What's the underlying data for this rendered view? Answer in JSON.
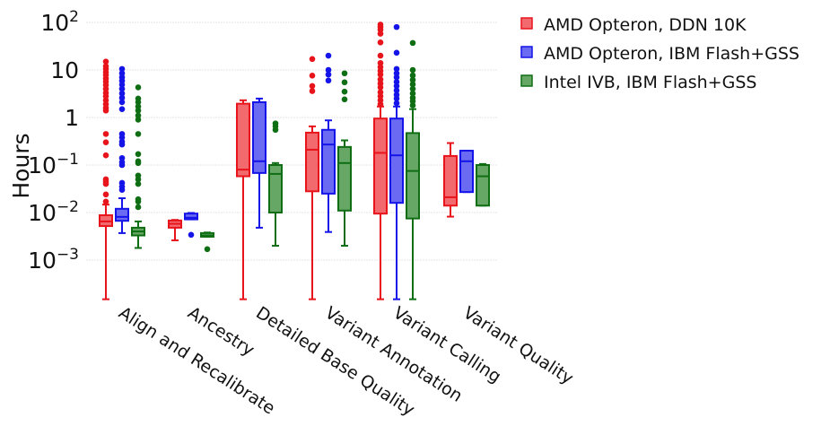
{
  "chart_data": {
    "type": "box",
    "title": "",
    "xlabel": "",
    "ylabel": "Hours",
    "yscale": "log",
    "ylim": [
      0.00015,
      110
    ],
    "grid": true,
    "legend_position": "top-right",
    "yticks": [
      {
        "value": 100,
        "base": "10",
        "exp": "2"
      },
      {
        "value": 10,
        "base": "10",
        "exp": ""
      },
      {
        "value": 1,
        "base": "1",
        "exp": ""
      },
      {
        "value": 0.1,
        "base": "10",
        "exp": "−1"
      },
      {
        "value": 0.01,
        "base": "10",
        "exp": "−2"
      },
      {
        "value": 0.001,
        "base": "10",
        "exp": "−3"
      }
    ],
    "categories": [
      "Align and Recalibrate",
      "Ancestry",
      "Detailed Base Quality",
      "Variant Annotation",
      "Variant Calling",
      "Variant Quality"
    ],
    "series": [
      {
        "name": "AMD Opteron, DDN 10K",
        "color": "#e8141b",
        "fill": "#f26a6e",
        "boxes": [
          {
            "low": 0.00015,
            "q1": 0.0052,
            "median": 0.0065,
            "q3": 0.0088,
            "high": 0.0147,
            "outliers": [
              0.017,
              0.024,
              0.04,
              0.045,
              0.05,
              0.16,
              0.3,
              0.45,
              1.4,
              1.6,
              1.9,
              2.3,
              2.8,
              3.3,
              4,
              4.8,
              5.7,
              6.6,
              7.8,
              9,
              10.5,
              12,
              15
            ]
          },
          {
            "low": 0.0026,
            "q1": 0.0048,
            "median": 0.0058,
            "q3": 0.0068,
            "high": 0.007,
            "outliers": []
          },
          {
            "low": 0.00015,
            "q1": 0.058,
            "median": 0.08,
            "q3": 1.95,
            "high": 2.3,
            "outliers": []
          },
          {
            "low": 0.00015,
            "q1": 0.028,
            "median": 0.21,
            "q3": 0.48,
            "high": 0.65,
            "outliers": [
              3.6,
              4.6,
              7.6,
              17
            ]
          },
          {
            "low": 0.00015,
            "q1": 0.0095,
            "median": 0.18,
            "q3": 0.95,
            "high": 1.7,
            "outliers": [
              1.9,
              2.3,
              2.8,
              3.4,
              4.3,
              5.2,
              6.3,
              8,
              9.6,
              11.5,
              14,
              20,
              38,
              58,
              70,
              80,
              90
            ]
          },
          {
            "low": 0.0082,
            "q1": 0.014,
            "median": 0.021,
            "q3": 0.155,
            "high": 0.29,
            "outliers": []
          }
        ]
      },
      {
        "name": "AMD Opteron, IBM Flash+GSS",
        "color": "#1414e8",
        "fill": "#6a6af2",
        "boxes": [
          {
            "low": 0.0037,
            "q1": 0.0067,
            "median": 0.0081,
            "q3": 0.012,
            "high": 0.02,
            "outliers": [
              0.03,
              0.035,
              0.042,
              0.1,
              0.115,
              0.14,
              0.27,
              0.31,
              0.38,
              0.45,
              1.5,
              2.1,
              2.6,
              3.2,
              4,
              4.9,
              5.9,
              7,
              8.5,
              10.5
            ]
          },
          {
            "low": 0.0072,
            "q1": 0.0072,
            "median": 0.0078,
            "q3": 0.0095,
            "high": 0.0098,
            "outliers": [
              0.0034
            ]
          },
          {
            "low": 0.0048,
            "q1": 0.068,
            "median": 0.12,
            "q3": 2.1,
            "high": 2.5,
            "outliers": []
          },
          {
            "low": 0.0039,
            "q1": 0.025,
            "median": 0.27,
            "q3": 0.55,
            "high": 0.87,
            "outliers": [
              6,
              8,
              10,
              20
            ]
          },
          {
            "low": 0.00015,
            "q1": 0.016,
            "median": 0.16,
            "q3": 0.95,
            "high": 1.7,
            "outliers": [
              2,
              2.5,
              3,
              3.7,
              4.6,
              5.6,
              7,
              8.5,
              10.5,
              23,
              80
            ]
          },
          {
            "low": 0.027,
            "q1": 0.027,
            "median": 0.12,
            "q3": 0.2,
            "high": 0.2,
            "outliers": []
          }
        ]
      },
      {
        "name": "Intel IVB, IBM Flash+GSS",
        "color": "#0f6e14",
        "fill": "#66a766",
        "boxes": [
          {
            "low": 0.0018,
            "q1": 0.0033,
            "median": 0.004,
            "q3": 0.0048,
            "high": 0.0065,
            "outliers": [
              0.013,
              0.017,
              0.019,
              0.04,
              0.05,
              0.06,
              0.11,
              0.12,
              0.17,
              0.45,
              0.9,
              1.1,
              1.4,
              1.7,
              2.1,
              2.5,
              4.3
            ]
          },
          {
            "low": 0.0031,
            "q1": 0.0031,
            "median": 0.0033,
            "q3": 0.0037,
            "high": 0.0038,
            "outliers": [
              0.0017
            ]
          },
          {
            "low": 0.002,
            "q1": 0.01,
            "median": 0.065,
            "q3": 0.1,
            "high": 0.11,
            "outliers": [
              0.55,
              0.65,
              0.75
            ]
          },
          {
            "low": 0.002,
            "q1": 0.011,
            "median": 0.11,
            "q3": 0.24,
            "high": 0.33,
            "outliers": [
              2.4,
              3.5,
              5.5,
              8.5
            ]
          },
          {
            "low": 0.00015,
            "q1": 0.0075,
            "median": 0.075,
            "q3": 0.47,
            "high": 1.5,
            "outliers": [
              1.8,
              2.2,
              2.6,
              3.2,
              4,
              5,
              6.2,
              7.7,
              10,
              37
            ]
          },
          {
            "low": 0.014,
            "q1": 0.014,
            "median": 0.058,
            "q3": 0.1,
            "high": 0.105,
            "outliers": []
          }
        ]
      }
    ]
  }
}
